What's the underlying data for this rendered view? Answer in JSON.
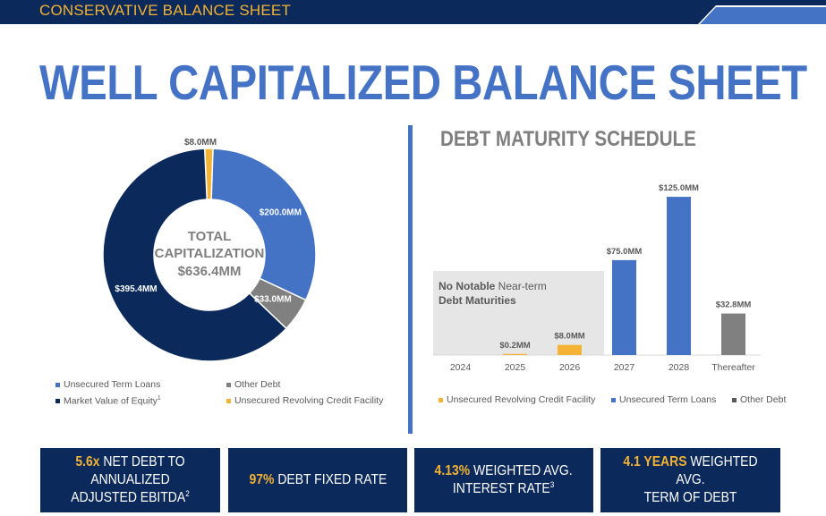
{
  "header": {
    "section": "CONSERVATIVE BALANCE SHEET"
  },
  "title": "WELL CAPITALIZED BALANCE SHEET",
  "colors": {
    "navy": "#0b2a5b",
    "blue": "#4472c4",
    "gray": "#808080",
    "gold": "#f5b335"
  },
  "chart_data": [
    {
      "type": "pie",
      "title": "TOTAL CAPITALIZATION",
      "center_label": [
        "TOTAL",
        "CAPITALIZATION",
        "$636.4MM"
      ],
      "categories": [
        "Unsecured Term Loans",
        "Other Debt",
        "Market Value of Equity",
        "Unsecured Revolving Credit Facility"
      ],
      "values": [
        200.0,
        33.0,
        395.4,
        8.0
      ],
      "labels": [
        "$200.0MM",
        "$33.0MM",
        "$395.4MM",
        "$8.0MM"
      ],
      "legend": [
        "Unsecured Term Loans",
        "Other Debt",
        "Market Value of Equity",
        "Unsecured Revolving Credit Facility"
      ],
      "legend_superscripts": [
        "",
        "",
        "1",
        ""
      ]
    },
    {
      "type": "bar",
      "title": "DEBT MATURITY SCHEDULE",
      "categories": [
        "2024",
        "2025",
        "2026",
        "2027",
        "2028",
        "Thereafter"
      ],
      "series": [
        {
          "name": "Unsecured Revolving Credit Facility",
          "values": [
            0,
            0.2,
            8.0,
            0,
            0,
            0
          ]
        },
        {
          "name": "Unsecured Term Loans",
          "values": [
            0,
            0,
            0,
            75.0,
            125.0,
            0
          ]
        },
        {
          "name": "Other Debt",
          "values": [
            0,
            0,
            0,
            0,
            0,
            32.8
          ]
        }
      ],
      "data_labels": [
        "",
        "$0.2MM",
        "$8.0MM",
        "$75.0MM",
        "$125.0MM",
        "$32.8MM"
      ],
      "annotation": {
        "bold": "No Notable",
        "rest": " Near-term",
        "line2": "Debt Maturities"
      },
      "ylim": [
        0,
        130
      ]
    }
  ],
  "kpis": [
    {
      "highlight": "5.6x",
      "text1": " NET DEBT TO ANNUALIZED",
      "text2": "ADJUSTED EBITDA",
      "sup": "2"
    },
    {
      "highlight": "97%",
      "text1": " DEBT FIXED RATE",
      "text2": "",
      "sup": ""
    },
    {
      "highlight": "4.13%",
      "text1": " WEIGHTED AVG.",
      "text2": "INTEREST RATE",
      "sup": "3"
    },
    {
      "highlight": "4.1 YEARS",
      "text1": " WEIGHTED AVG.",
      "text2": "TERM OF DEBT",
      "sup": ""
    }
  ]
}
